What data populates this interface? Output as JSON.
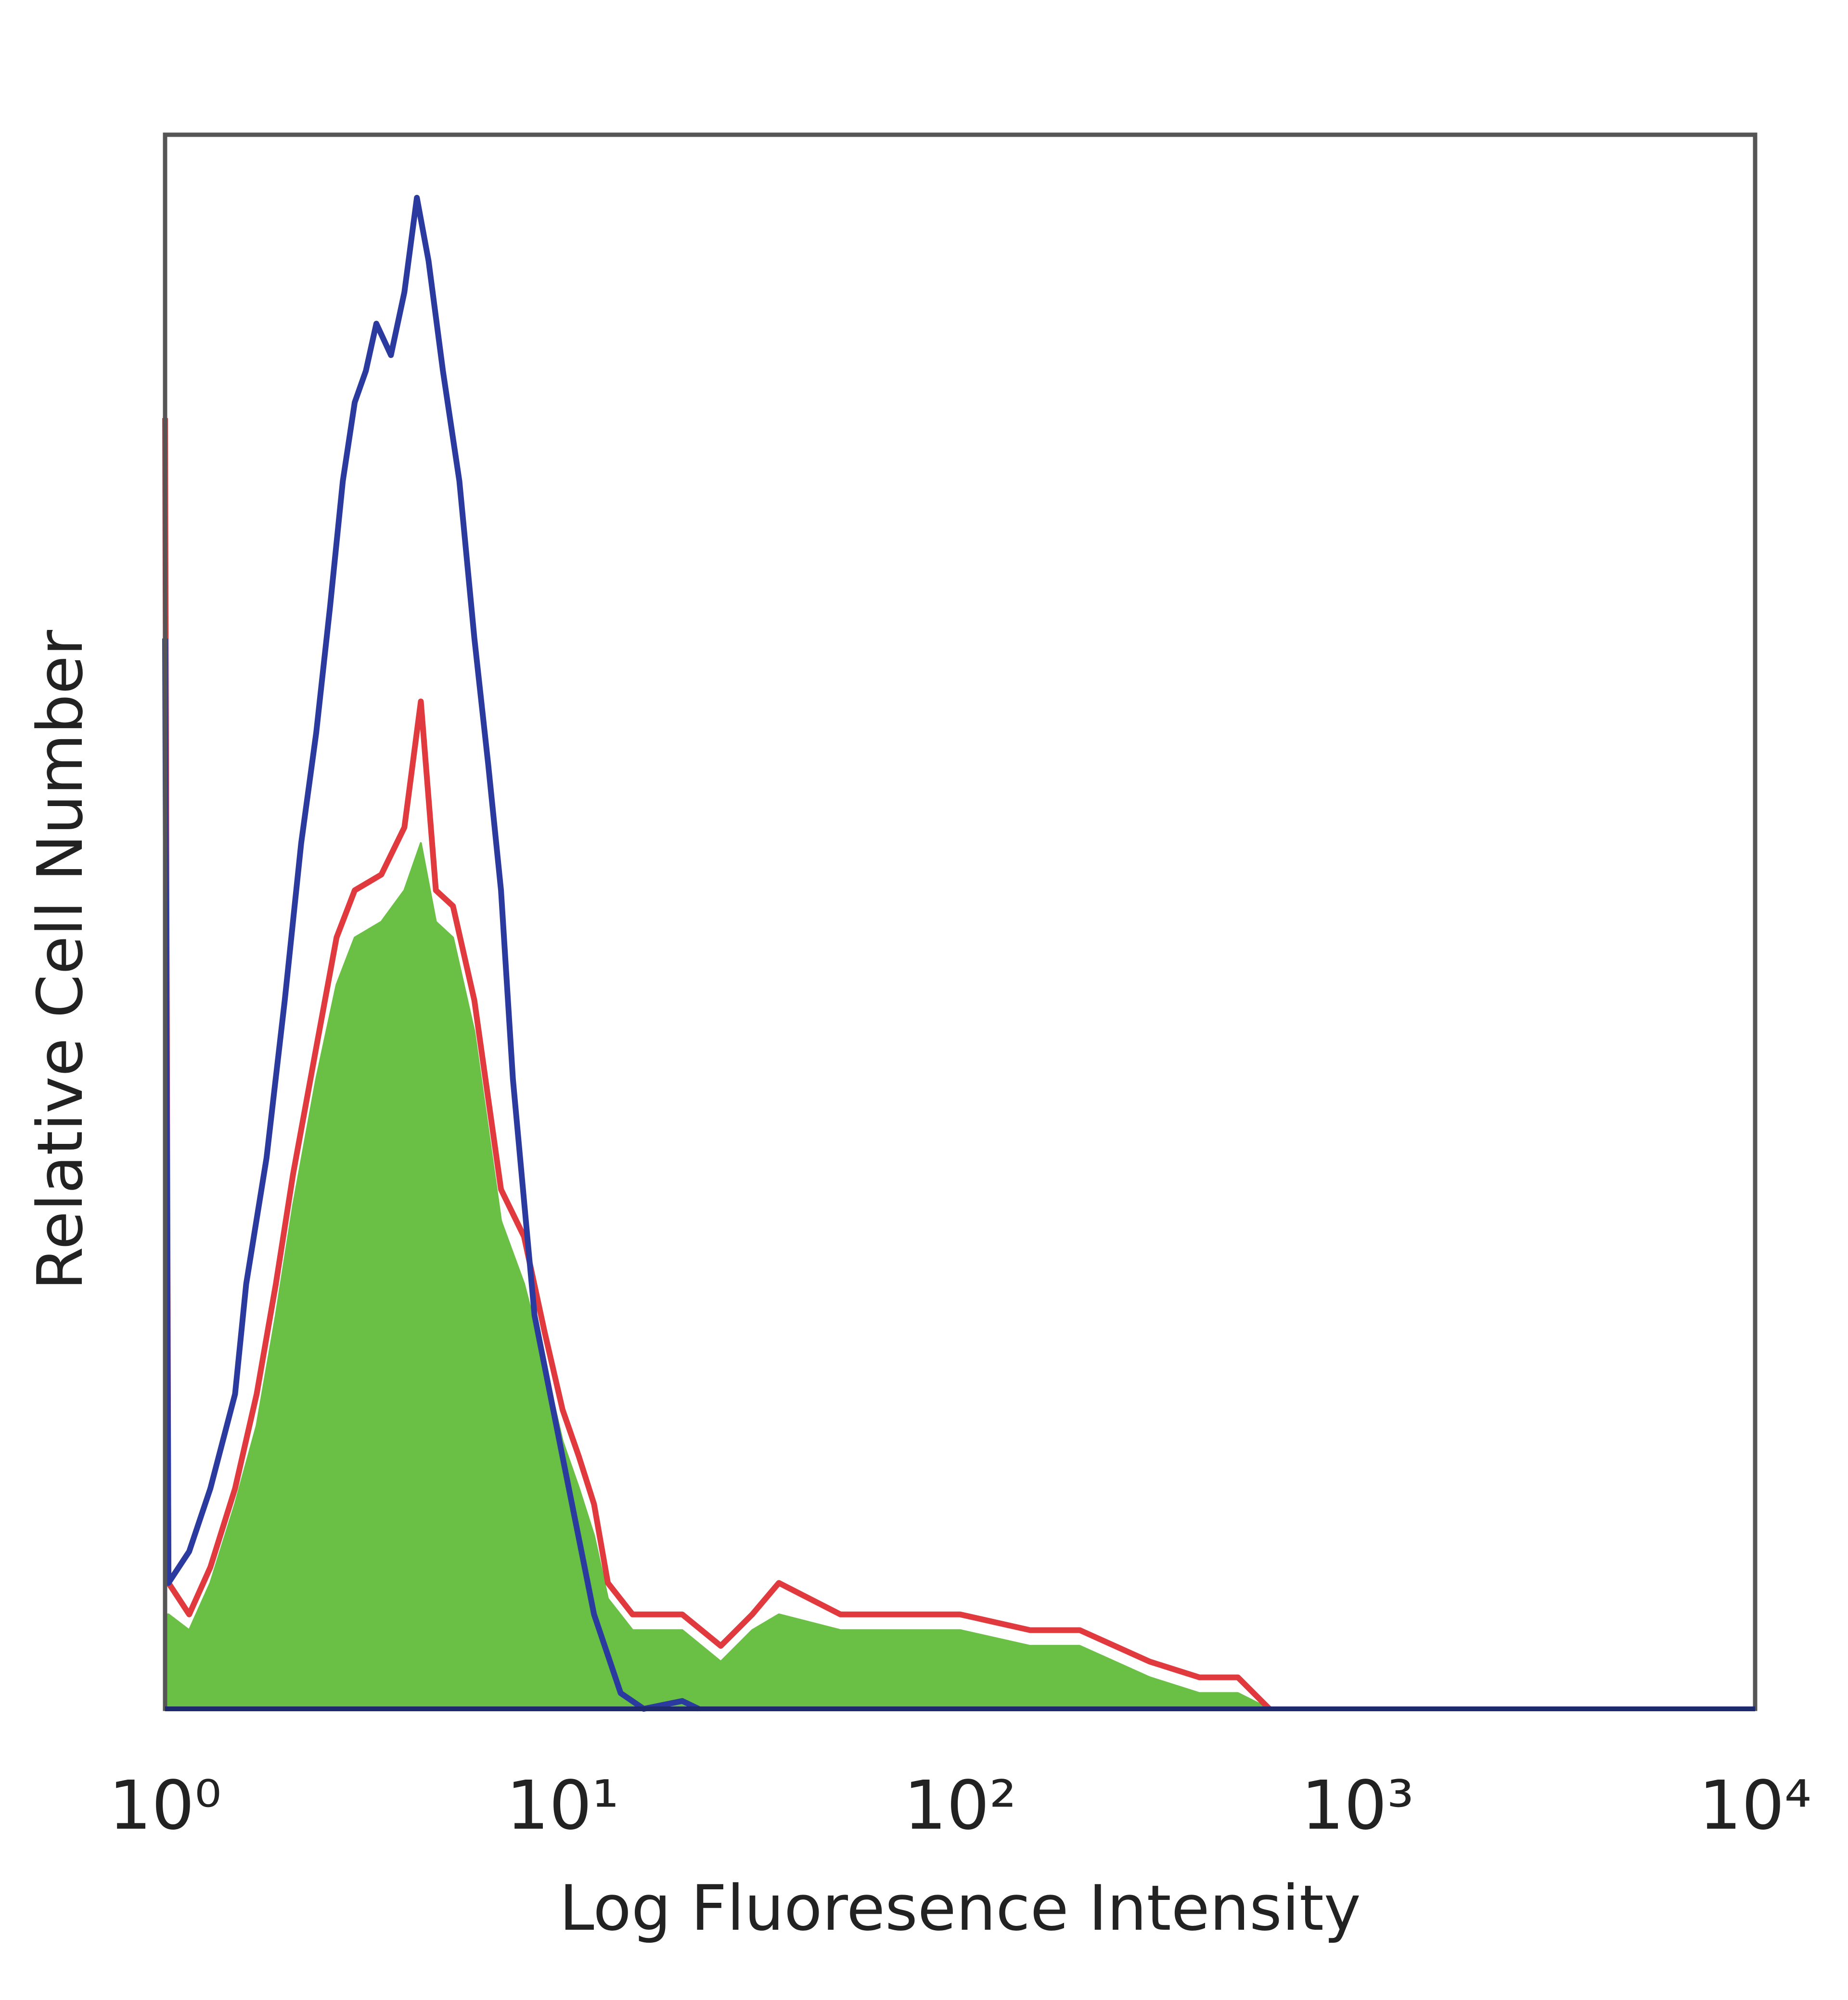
{
  "chart_data": {
    "type": "line",
    "xlabel": "Log Fluoresence Intensity",
    "ylabel": "Relative Cell Number",
    "xscale": "log",
    "xlim": [
      1,
      10000
    ],
    "ylim": [
      0,
      100
    ],
    "xticks": [
      {
        "value": 1,
        "label": "10⁰"
      },
      {
        "value": 10,
        "label": "10¹"
      },
      {
        "value": 100,
        "label": "10²"
      },
      {
        "value": 1000,
        "label": "10³"
      },
      {
        "value": 10000,
        "label": "10⁴"
      }
    ],
    "grid": false,
    "series": [
      {
        "color": "#6abf45",
        "filled": true,
        "x": [
          1,
          1.02,
          1.15,
          1.3,
          1.5,
          1.7,
          1.9,
          2.1,
          2.4,
          2.7,
          3.0,
          3.5,
          4.0,
          4.4,
          4.8,
          5.3,
          6.0,
          7.0,
          8.0,
          9.0,
          10,
          11,
          12,
          13,
          15,
          20,
          25,
          30,
          35,
          50,
          70,
          100,
          150,
          200,
          300,
          400,
          500,
          600
        ],
        "values": [
          6,
          6,
          5,
          8,
          13,
          18,
          25,
          32,
          40,
          46,
          49,
          50,
          52,
          55,
          50,
          49,
          43,
          31,
          27,
          22,
          17,
          14,
          11,
          7,
          5,
          5,
          3,
          5,
          6,
          5,
          5,
          5,
          4,
          4,
          2,
          1,
          1,
          0
        ]
      },
      {
        "color": "#e0393e",
        "filled": false,
        "x": [
          1,
          1.02,
          1.15,
          1.3,
          1.5,
          1.7,
          1.9,
          2.1,
          2.4,
          2.7,
          3.0,
          3.5,
          4.0,
          4.4,
          4.8,
          5.3,
          6.0,
          7.0,
          8.0,
          9.0,
          10,
          11,
          12,
          13,
          15,
          20,
          25,
          30,
          35,
          50,
          70,
          100,
          150,
          200,
          300,
          400,
          500,
          600
        ],
        "values": [
          82,
          8,
          6,
          9,
          14,
          20,
          27,
          34,
          42,
          49,
          52,
          53,
          56,
          64,
          52,
          51,
          45,
          33,
          30,
          24,
          19,
          16,
          13,
          8,
          6,
          6,
          4,
          6,
          8,
          6,
          6,
          6,
          5,
          5,
          3,
          2,
          2,
          0
        ]
      },
      {
        "color": "#2b3a9e",
        "filled": false,
        "x": [
          1,
          1.02,
          1.15,
          1.3,
          1.5,
          1.6,
          1.8,
          2.0,
          2.2,
          2.4,
          2.6,
          2.8,
          3.0,
          3.2,
          3.4,
          3.7,
          4.0,
          4.3,
          4.6,
          5.0,
          5.5,
          6.0,
          6.5,
          7.0,
          7.5,
          8.5,
          10,
          12,
          14,
          16,
          20,
          22
        ],
        "values": [
          68,
          8,
          10,
          14,
          20,
          27,
          35,
          45,
          55,
          62,
          70,
          78,
          83,
          85,
          88,
          86,
          90,
          96,
          92,
          85,
          78,
          68,
          60,
          52,
          40,
          25,
          16,
          6,
          1,
          0,
          0.5,
          0
        ]
      }
    ]
  }
}
